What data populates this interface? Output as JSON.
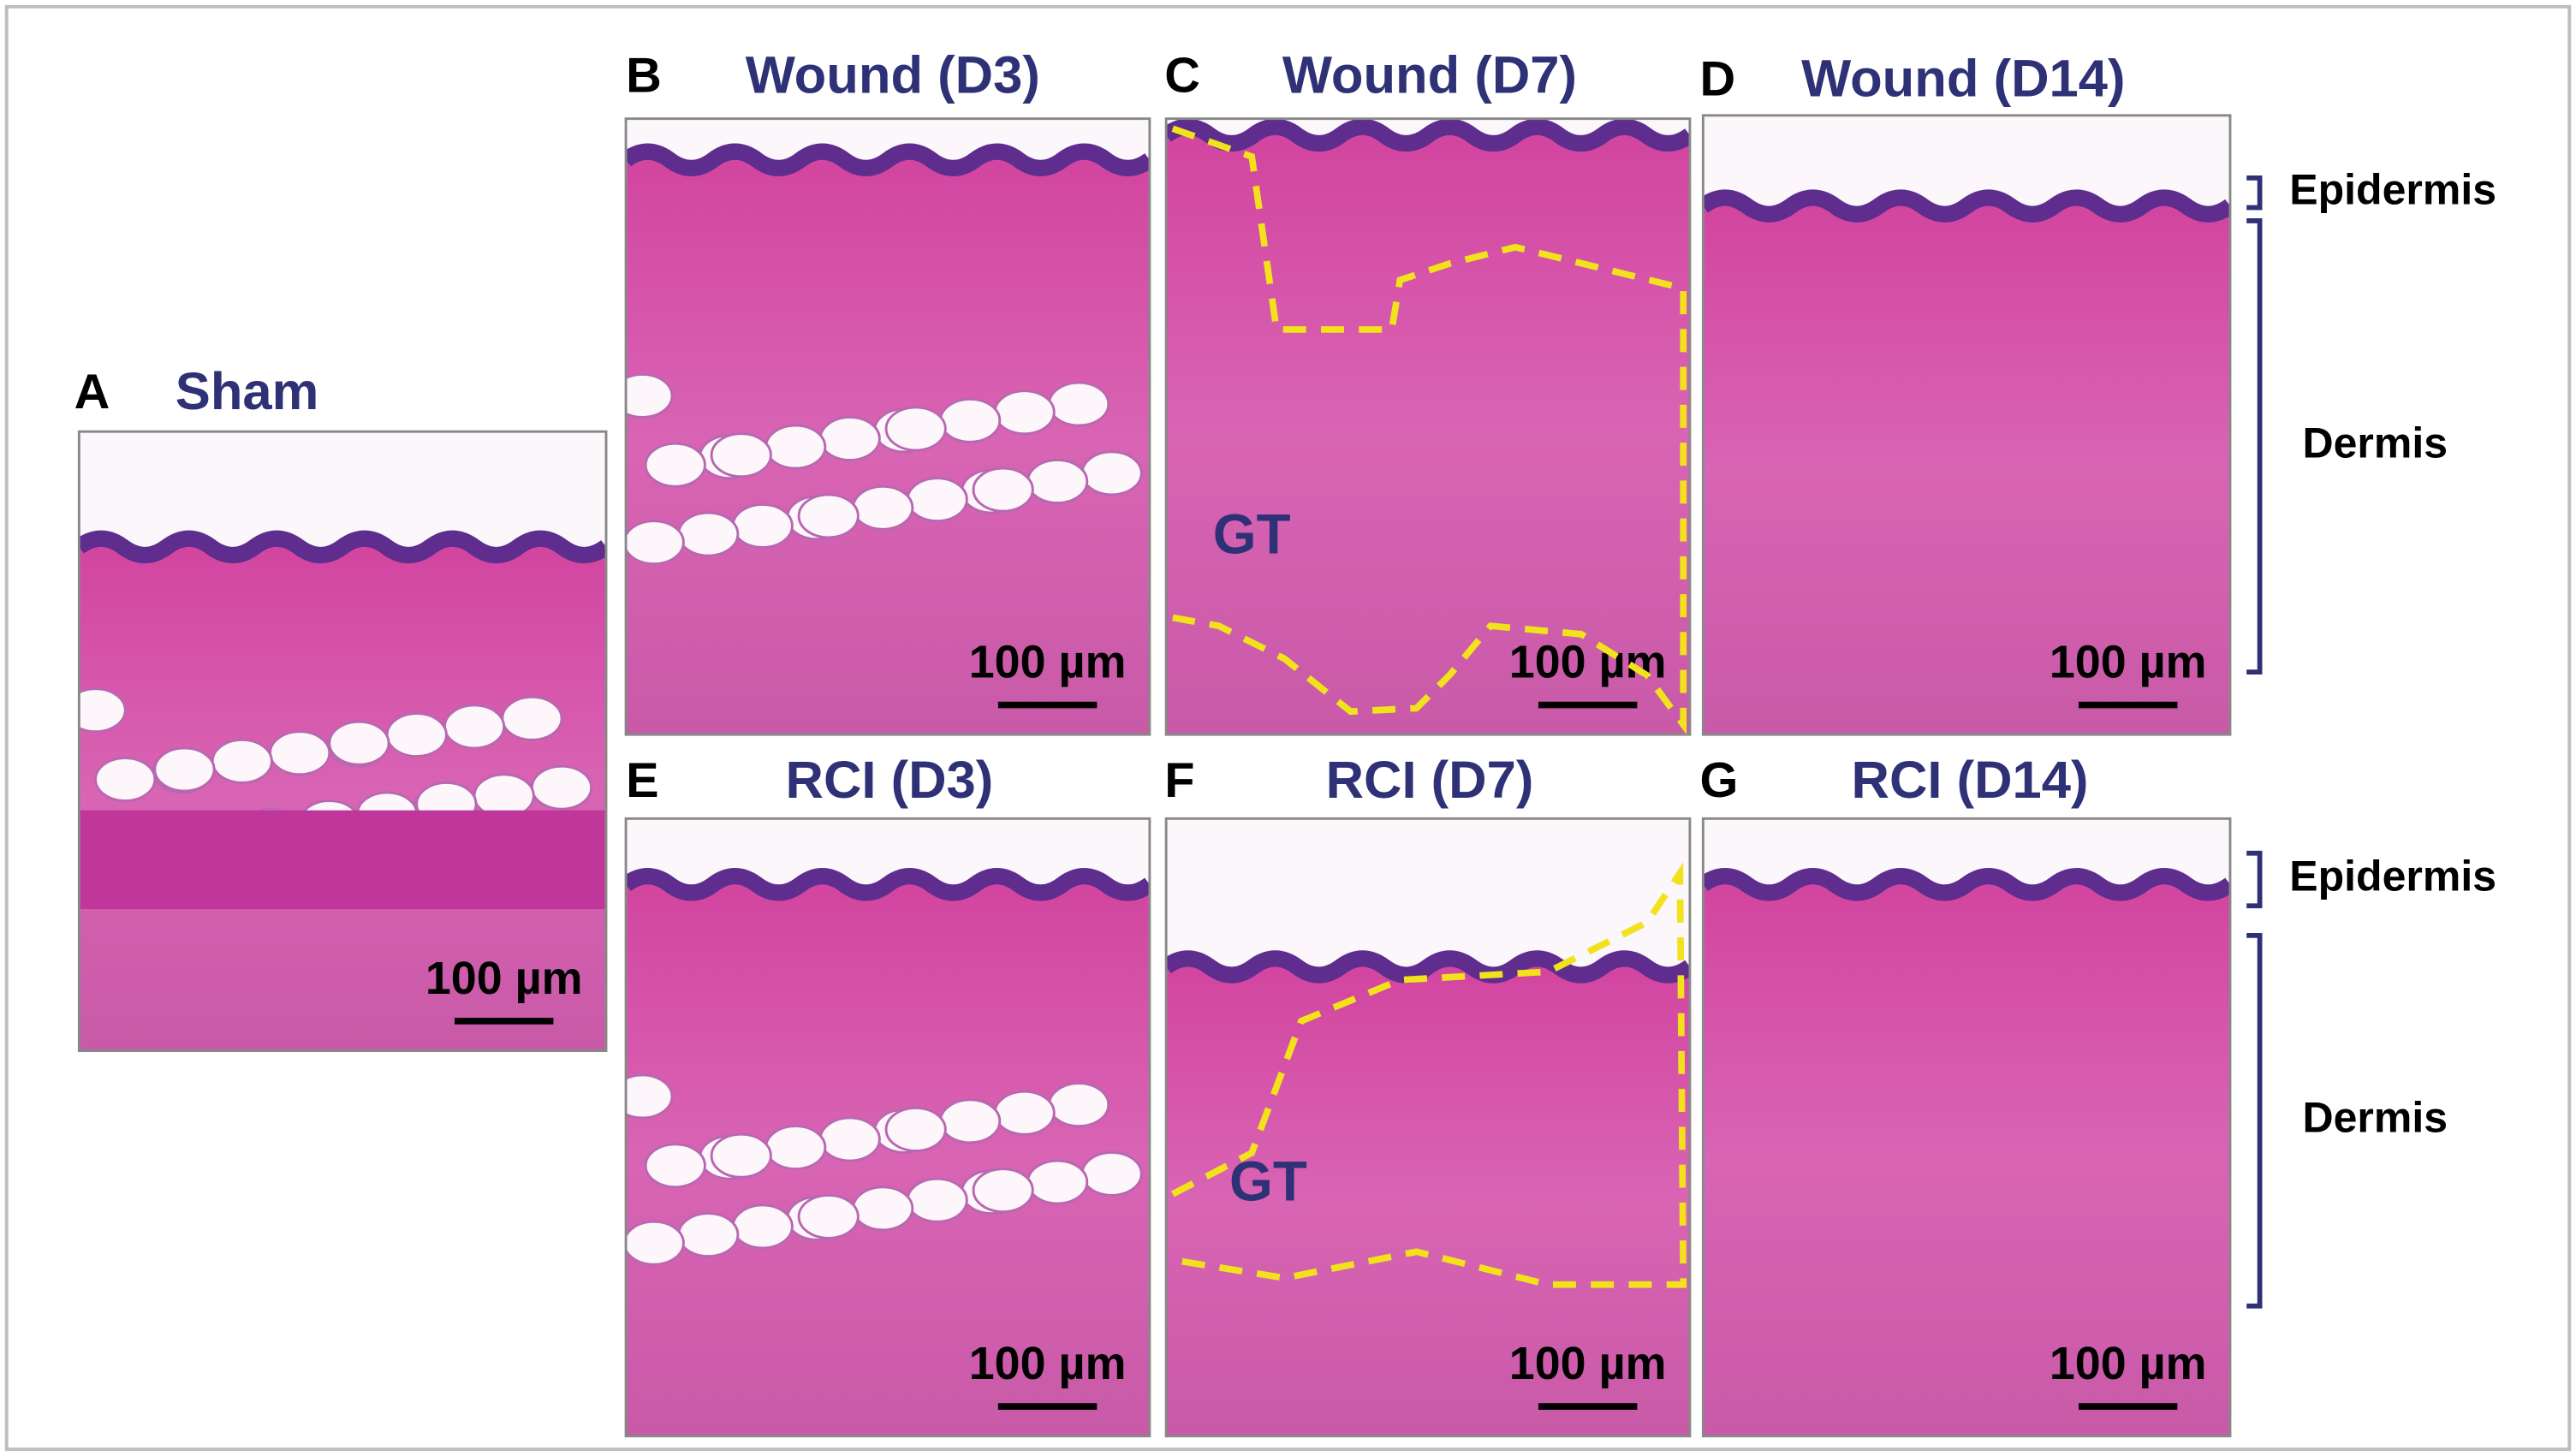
{
  "panels": [
    {
      "letter": "A",
      "title": "Sham",
      "scale_bar": "100 µm"
    },
    {
      "letter": "B",
      "title": "Wound (D3)",
      "scale_bar": "100 µm"
    },
    {
      "letter": "C",
      "title": "Wound (D7)",
      "scale_bar": "100 µm"
    },
    {
      "letter": "D",
      "title": "Wound (D14)",
      "scale_bar": "100 µm"
    },
    {
      "letter": "E",
      "title": "RCI (D3)",
      "scale_bar": "100 µm"
    },
    {
      "letter": "F",
      "title": "RCI (D7)",
      "scale_bar": "100 µm"
    },
    {
      "letter": "G",
      "title": "RCI (D14)",
      "scale_bar": "100 µm"
    }
  ],
  "annotations": [
    "GT",
    "GT"
  ],
  "side_labels": [
    {
      "epidermis": "Epidermis",
      "dermis": "Dermis"
    },
    {
      "epidermis": "Epidermis",
      "dermis": "Dermis"
    }
  ]
}
